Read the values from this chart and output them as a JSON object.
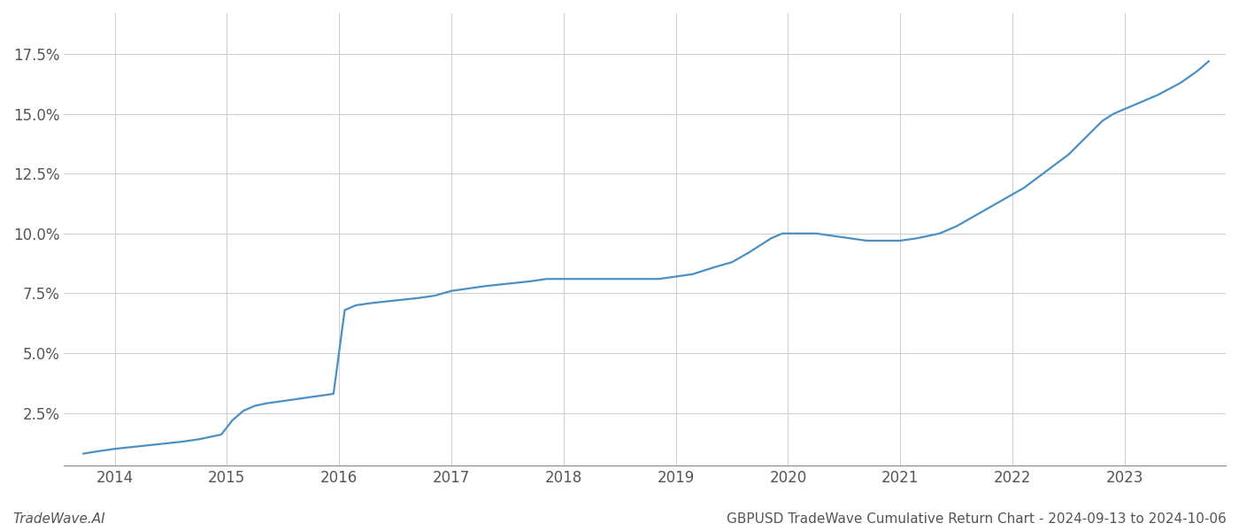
{
  "title": "GBPUSD TradeWave Cumulative Return Chart - 2024-09-13 to 2024-10-06",
  "watermark": "TradeWave.AI",
  "line_color": "#4a90c4",
  "background_color": "#ffffff",
  "grid_color": "#cccccc",
  "x_values": [
    2013.72,
    2013.85,
    2014.0,
    2014.2,
    2014.4,
    2014.6,
    2014.75,
    2014.85,
    2014.95,
    2015.05,
    2015.15,
    2015.25,
    2015.35,
    2015.5,
    2015.65,
    2015.8,
    2015.95,
    2016.05,
    2016.15,
    2016.3,
    2016.5,
    2016.7,
    2016.85,
    2017.0,
    2017.15,
    2017.3,
    2017.5,
    2017.7,
    2017.85,
    2018.0,
    2018.15,
    2018.3,
    2018.5,
    2018.7,
    2018.85,
    2019.0,
    2019.15,
    2019.35,
    2019.5,
    2019.65,
    2019.75,
    2019.85,
    2019.95,
    2020.1,
    2020.25,
    2020.4,
    2020.55,
    2020.7,
    2020.85,
    2021.0,
    2021.15,
    2021.35,
    2021.5,
    2021.65,
    2021.8,
    2021.95,
    2022.1,
    2022.3,
    2022.5,
    2022.65,
    2022.8,
    2022.9,
    2023.0,
    2023.15,
    2023.3,
    2023.5,
    2023.65,
    2023.75
  ],
  "y_values": [
    0.008,
    0.009,
    0.01,
    0.011,
    0.012,
    0.013,
    0.014,
    0.015,
    0.016,
    0.022,
    0.026,
    0.028,
    0.029,
    0.03,
    0.031,
    0.032,
    0.033,
    0.068,
    0.07,
    0.071,
    0.072,
    0.073,
    0.074,
    0.076,
    0.077,
    0.078,
    0.079,
    0.08,
    0.081,
    0.081,
    0.081,
    0.081,
    0.081,
    0.081,
    0.081,
    0.082,
    0.083,
    0.086,
    0.088,
    0.092,
    0.095,
    0.098,
    0.1,
    0.1,
    0.1,
    0.099,
    0.098,
    0.097,
    0.097,
    0.097,
    0.098,
    0.1,
    0.103,
    0.107,
    0.111,
    0.115,
    0.119,
    0.126,
    0.133,
    0.14,
    0.147,
    0.15,
    0.152,
    0.155,
    0.158,
    0.163,
    0.168,
    0.172
  ],
  "x_ticks": [
    2014,
    2015,
    2016,
    2017,
    2018,
    2019,
    2020,
    2021,
    2022,
    2023
  ],
  "y_ticks": [
    0.025,
    0.05,
    0.075,
    0.1,
    0.125,
    0.15,
    0.175
  ],
  "y_tick_labels": [
    "2.5%",
    "5.0%",
    "7.5%",
    "10.0%",
    "12.5%",
    "15.0%",
    "17.5%"
  ],
  "ylim": [
    0.003,
    0.192
  ],
  "xlim": [
    2013.55,
    2023.9
  ],
  "line_width": 1.6,
  "tick_fontsize": 12,
  "footer_fontsize": 11
}
